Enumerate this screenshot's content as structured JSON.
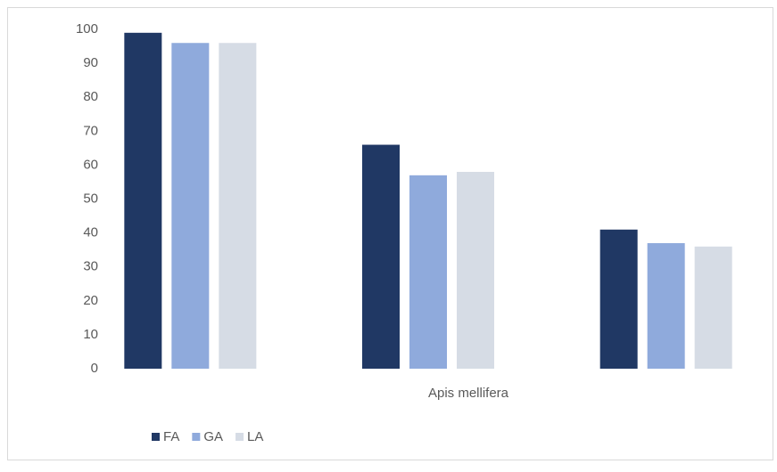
{
  "chart_data": {
    "type": "bar",
    "categories": [
      null,
      "Apis mellifera",
      null
    ],
    "series": [
      {
        "name": "FA",
        "color": "#203864",
        "values": [
          99,
          66,
          41
        ]
      },
      {
        "name": "GA",
        "color": "#8faadc",
        "values": [
          96,
          57,
          37
        ]
      },
      {
        "name": "LA",
        "color": "#d6dce5",
        "values": [
          96,
          58,
          36
        ]
      }
    ],
    "ylim": [
      0,
      100
    ],
    "yticks": [
      0,
      10,
      20,
      30,
      40,
      50,
      60,
      70,
      80,
      90,
      100
    ],
    "grid": false,
    "legend": "bottom"
  }
}
